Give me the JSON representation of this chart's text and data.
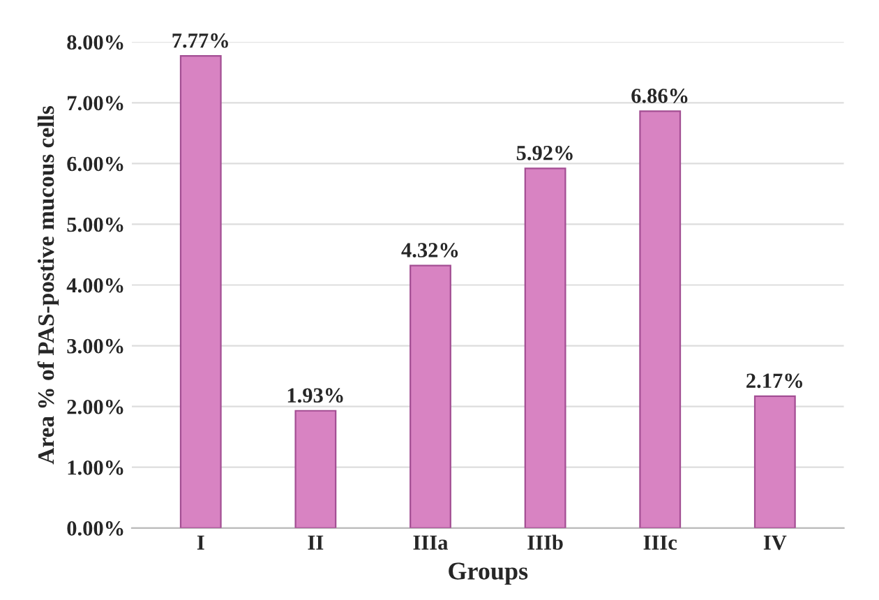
{
  "chart_data": {
    "type": "bar",
    "xlabel": "Groups",
    "ylabel": "Area % of PAS-postive mucous cells",
    "categories": [
      "I",
      "II",
      "IIIa",
      "IIIb",
      "IIIc",
      "IV"
    ],
    "values": [
      7.77,
      1.93,
      4.32,
      5.92,
      6.86,
      2.17
    ],
    "value_labels": [
      "7.77%",
      "1.93%",
      "4.32%",
      "5.92%",
      "6.86%",
      "2.17%"
    ],
    "color": "#d883c2",
    "ylim": [
      0,
      8
    ],
    "yticks": [
      {
        "value": 0,
        "label": "0.00%"
      },
      {
        "value": 1,
        "label": "1.00%"
      },
      {
        "value": 2,
        "label": "2.00%"
      },
      {
        "value": 3,
        "label": "3.00%"
      },
      {
        "value": 4,
        "label": "4.00%"
      },
      {
        "value": 5,
        "label": "5.00%"
      },
      {
        "value": 6,
        "label": "6.00%"
      },
      {
        "value": 7,
        "label": "7.00%"
      },
      {
        "value": 8,
        "label": "8.00%"
      }
    ],
    "grid": "y"
  }
}
